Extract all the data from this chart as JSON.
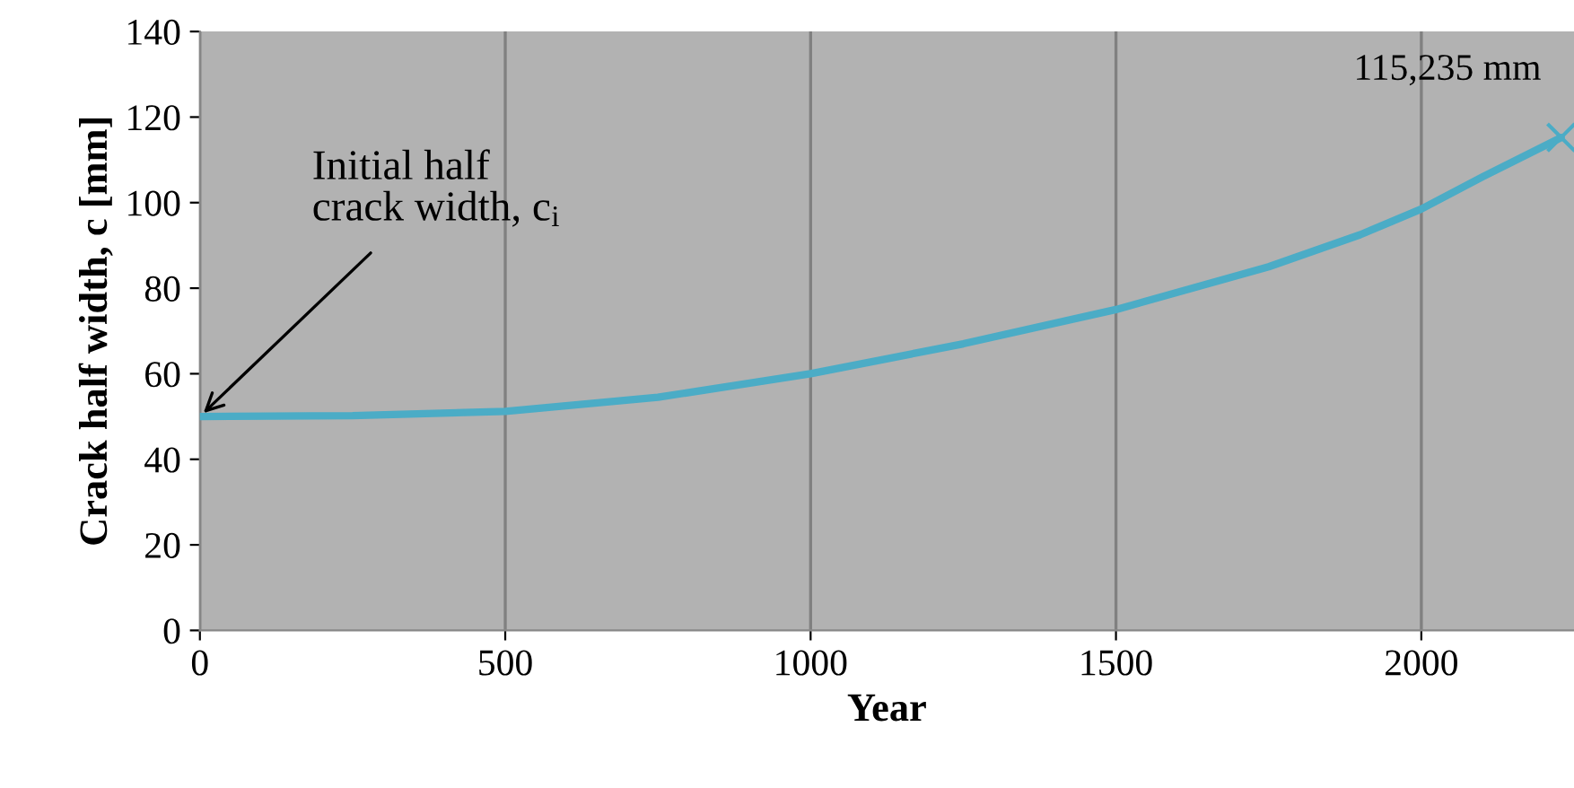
{
  "chart_data": {
    "type": "line",
    "xlabel": "Year",
    "ylabel": "Crack half width, c [mm]",
    "xlim": [
      0,
      2250
    ],
    "xticks": [
      0,
      500,
      1000,
      1500,
      2000
    ],
    "ylim": [
      0,
      140
    ],
    "yticks": [
      0,
      20,
      40,
      60,
      80,
      100,
      120,
      140
    ],
    "grid": "x",
    "legend": false,
    "series": [
      {
        "color": "#4bacc6",
        "marker": "none",
        "x": [
          0,
          250,
          500,
          750,
          1000,
          1250,
          1500,
          1750,
          1900,
          2000,
          2100,
          2229
        ],
        "values": [
          50,
          50.2,
          51.2,
          54.5,
          60,
          67,
          75,
          85,
          92.5,
          98.5,
          106,
          115.235
        ]
      },
      {
        "type": "scatter",
        "color": "#4bacc6",
        "marker": "cross",
        "x": [
          2229
        ],
        "values": [
          115.235
        ]
      }
    ],
    "annotations": [
      {
        "text": "115,235 mm",
        "x": 2229,
        "y": 115.235
      },
      {
        "text": "Initial half\ncrack width, c$_{i}$",
        "x": 0,
        "y": 50
      }
    ]
  }
}
